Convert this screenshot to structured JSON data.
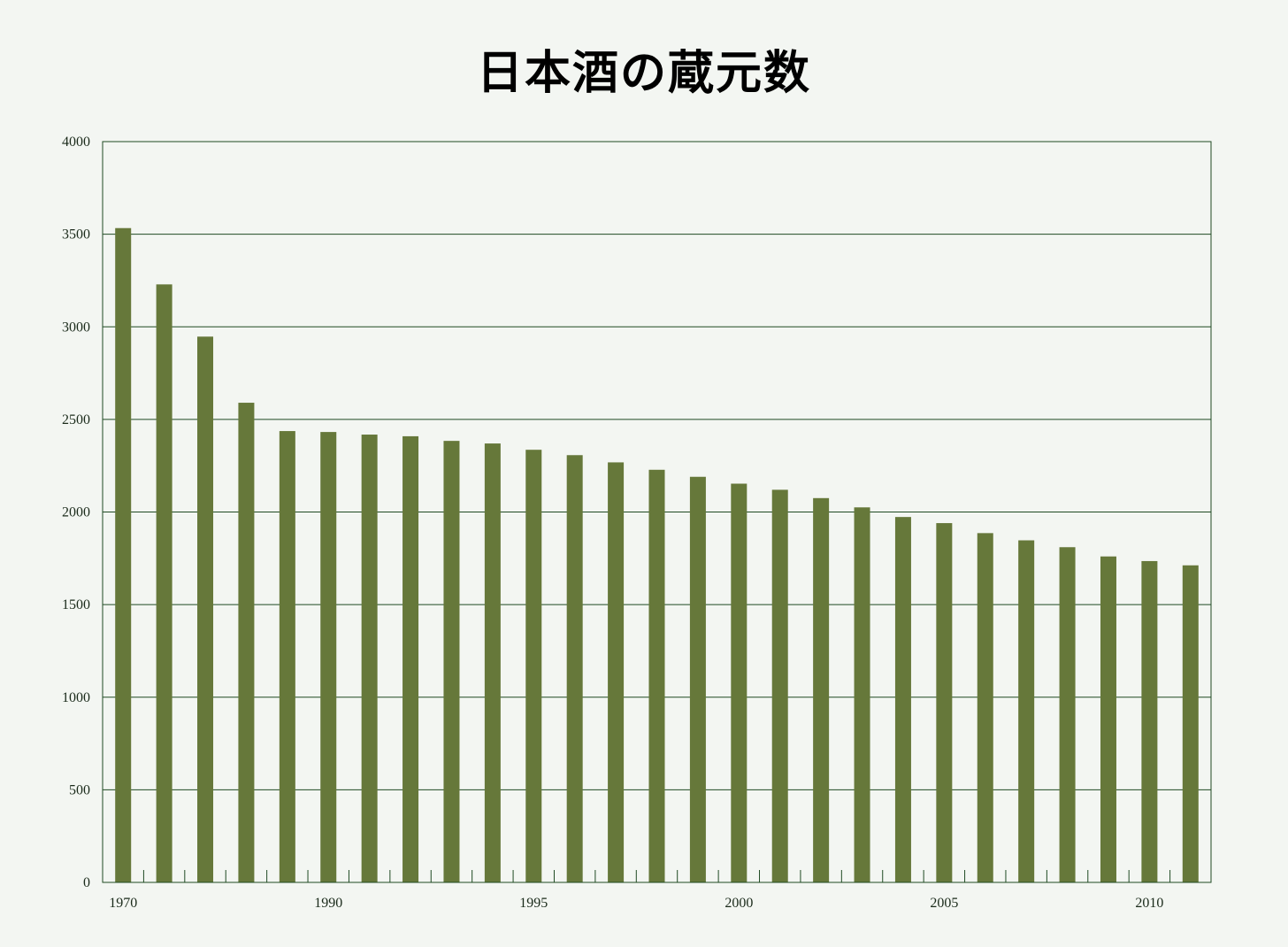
{
  "chart_data": {
    "type": "bar",
    "title": "日本酒の蔵元数",
    "xlabel": "",
    "ylabel": "",
    "ylim": [
      0,
      4000
    ],
    "yticks": [
      0,
      500,
      1000,
      1500,
      2000,
      2500,
      3000,
      3500,
      4000
    ],
    "grid": true,
    "categories": [
      "1970",
      "",
      "",
      "",
      "",
      "1990",
      "",
      "",
      "",
      "",
      "1995",
      "",
      "",
      "",
      "",
      "2000",
      "",
      "",
      "",
      "",
      "2005",
      "",
      "",
      "",
      "",
      "2010",
      ""
    ],
    "x_tick_labels": [
      "1970",
      "1990",
      "1995",
      "2000",
      "2005",
      "2010"
    ],
    "values": [
      3533,
      3229,
      2947,
      2590,
      2437,
      2432,
      2418,
      2409,
      2384,
      2370,
      2336,
      2307,
      2268,
      2228,
      2190,
      2153,
      2120,
      2075,
      2025,
      1973,
      1940,
      1886,
      1847,
      1810,
      1760,
      1735,
      1712
    ],
    "colors": {
      "bar": "#66783a",
      "grid": "#1f4a22",
      "axis": "#1f4a22",
      "background": "#f3f6f2"
    }
  }
}
